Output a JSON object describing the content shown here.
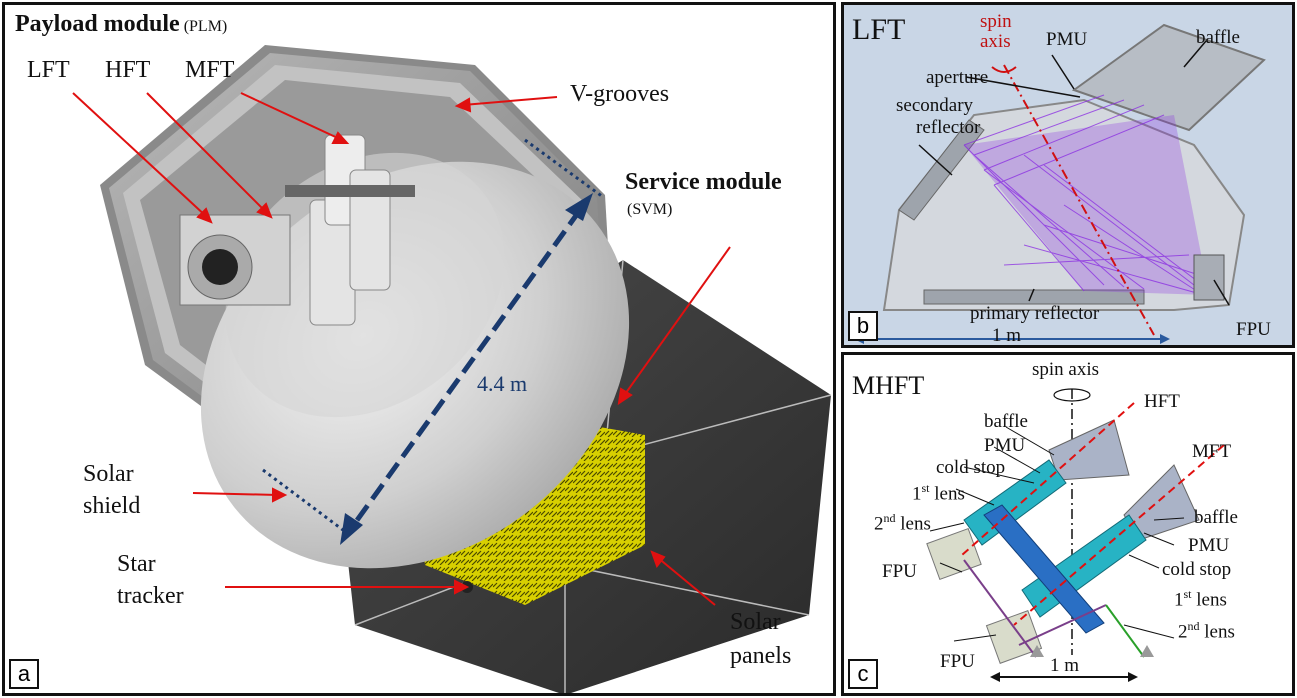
{
  "panel_a": {
    "tag": "a",
    "title_bold": "Payload module",
    "title_abbr": "(PLM)",
    "telescopes": [
      "LFT",
      "HFT",
      "MFT"
    ],
    "v_grooves": "V-grooves",
    "service_bold": "Service module",
    "service_abbr": "(SVM)",
    "dimension": "4.4 m",
    "solar_shield": [
      "Solar",
      "shield"
    ],
    "star_tracker": [
      "Star",
      "tracker"
    ],
    "solar_panels": [
      "Solar",
      "panels"
    ]
  },
  "panel_b": {
    "tag": "b",
    "title": "LFT",
    "spin_axis": [
      "spin",
      "axis"
    ],
    "pmu": "PMU",
    "baffle": "baffle",
    "aperture": "aperture",
    "secondary": [
      "secondary",
      "reflector"
    ],
    "primary": "primary reflector",
    "scale": "1 m",
    "fpu": "FPU"
  },
  "panel_c": {
    "tag": "c",
    "title": "MHFT",
    "spin_axis": "spin axis",
    "hft": "HFT",
    "mft": "MFT",
    "baffle_top": "baffle",
    "pmu_top": "PMU",
    "cold_stop_top": "cold stop",
    "lens1_num": "1",
    "lens1_sup": "st",
    "lens1_word": " lens",
    "lens2_num": "2",
    "lens2_sup": "nd",
    "lens2_word": " lens",
    "fpu_top": "FPU",
    "baffle_right": "baffle",
    "pmu_right": "PMU",
    "cold_stop_right": "cold stop",
    "lens1r_num": "1",
    "lens1r_sup": "st",
    "lens1r_word": " lens",
    "lens2r_num": "2",
    "lens2r_sup": "nd",
    "lens2r_word": " lens",
    "fpu_bottom": "FPU",
    "scale": "1 m"
  },
  "colors": {
    "arrow_red": "#e01010",
    "dimension_blue": "#1a3a6e",
    "ray_violet": "#8a2be2",
    "lens_cyan": "#27b3c4",
    "harness_yellow": "#e6e600",
    "panel_dark": "#3a3a3a"
  }
}
